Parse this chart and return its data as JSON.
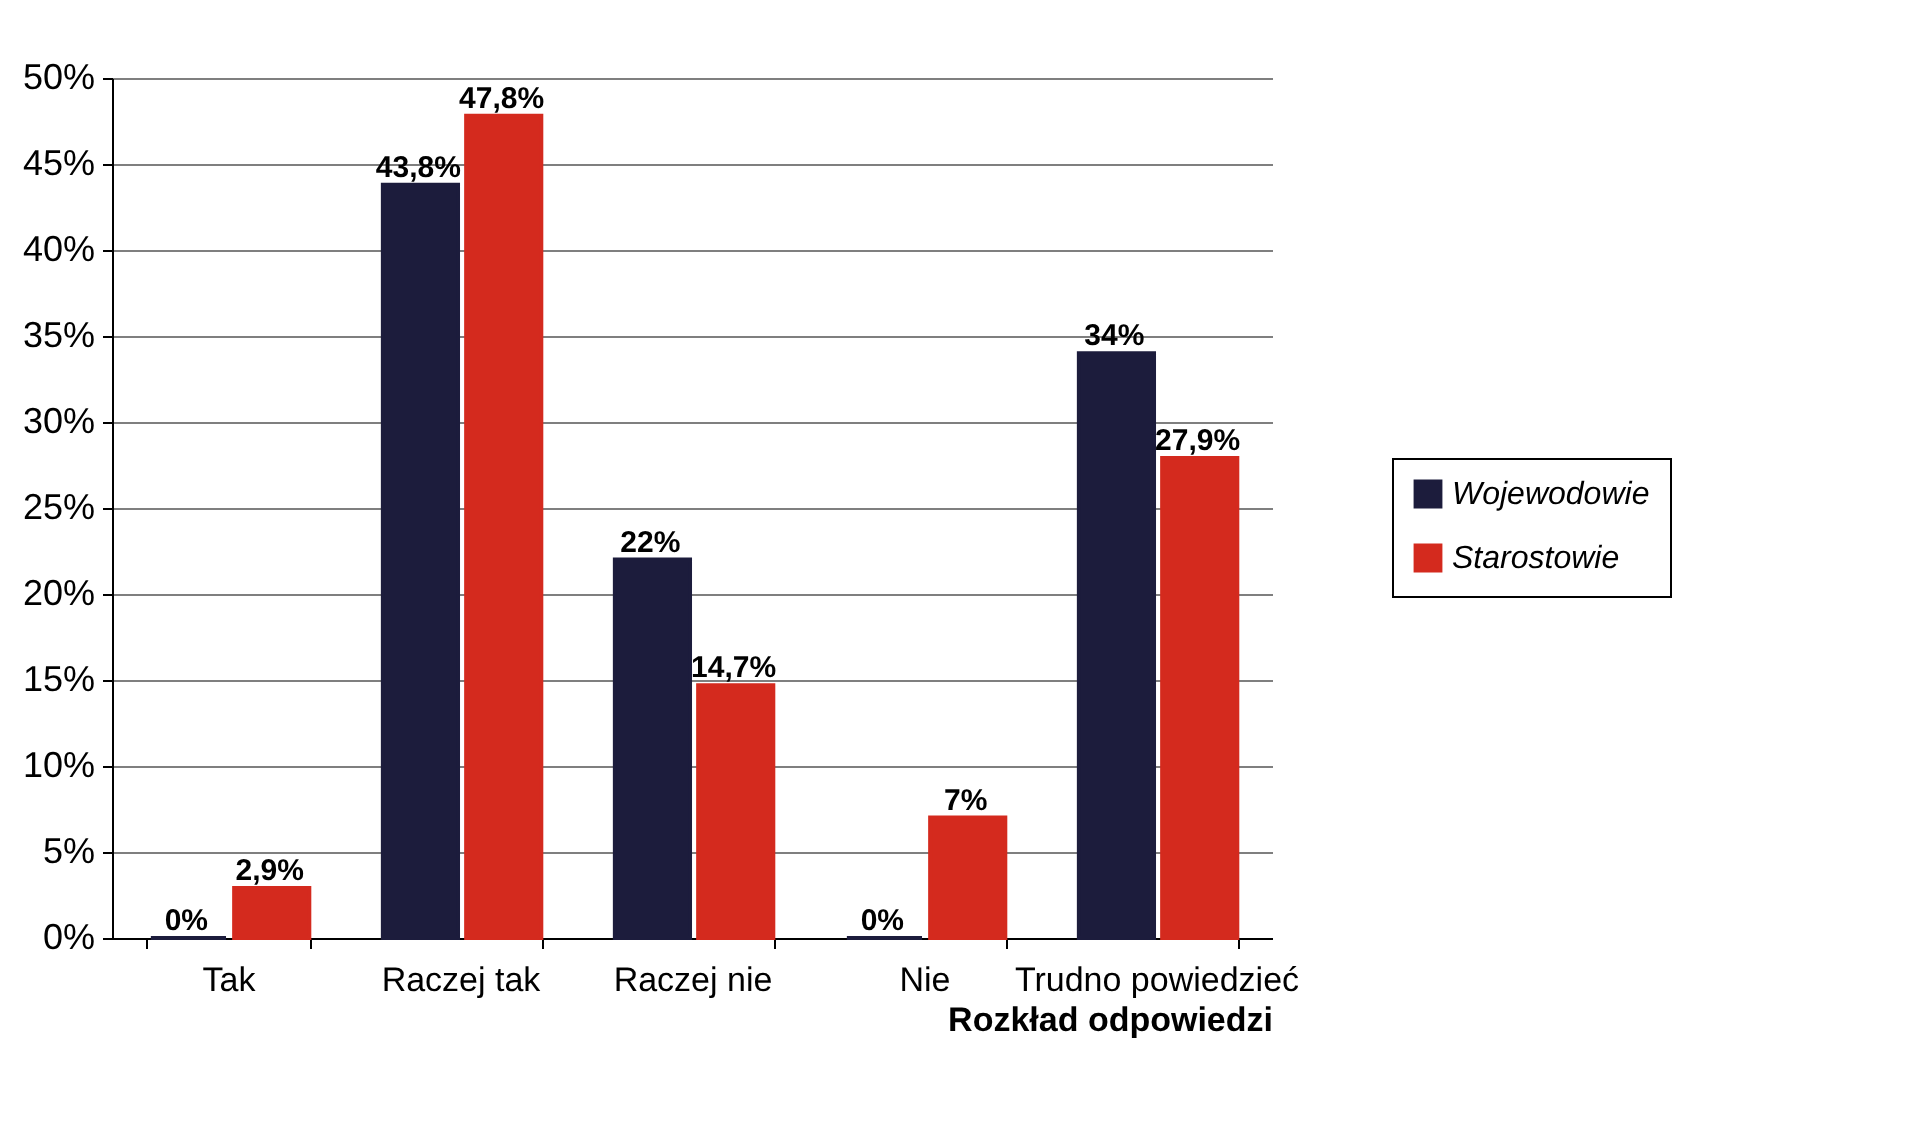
{
  "chart_data": {
    "type": "bar",
    "xlabel": "Rozkład odpowiedzi",
    "categories": [
      "Tak",
      "Raczej tak",
      "Raczej nie",
      "Nie",
      "Trudno powiedzieć"
    ],
    "series": [
      {
        "name": "Wojewodowie",
        "color": "#1c1c3c",
        "values": [
          0,
          43.8,
          22,
          0,
          34
        ],
        "value_labels": [
          "0%",
          "43,8%",
          "22%",
          "0%",
          "34%"
        ]
      },
      {
        "name": "Starostowie",
        "color": "#d42a1e",
        "values": [
          2.9,
          47.8,
          14.7,
          7,
          27.9
        ],
        "value_labels": [
          "2,9%",
          "47,8%",
          "14,7%",
          "7%",
          "27,9%"
        ]
      }
    ],
    "ylim": [
      0,
      50
    ],
    "yticks": [
      {
        "value": 0,
        "label": "0%"
      },
      {
        "value": 5,
        "label": "5%"
      },
      {
        "value": 10,
        "label": "10%"
      },
      {
        "value": 15,
        "label": "15%"
      },
      {
        "value": 20,
        "label": "20%"
      },
      {
        "value": 25,
        "label": "25%"
      },
      {
        "value": 30,
        "label": "30%"
      },
      {
        "value": 35,
        "label": "35%"
      },
      {
        "value": 40,
        "label": "40%"
      },
      {
        "value": 45,
        "label": "45%"
      },
      {
        "value": 50,
        "label": "50%"
      }
    ],
    "grid": "y",
    "legend": "right"
  }
}
